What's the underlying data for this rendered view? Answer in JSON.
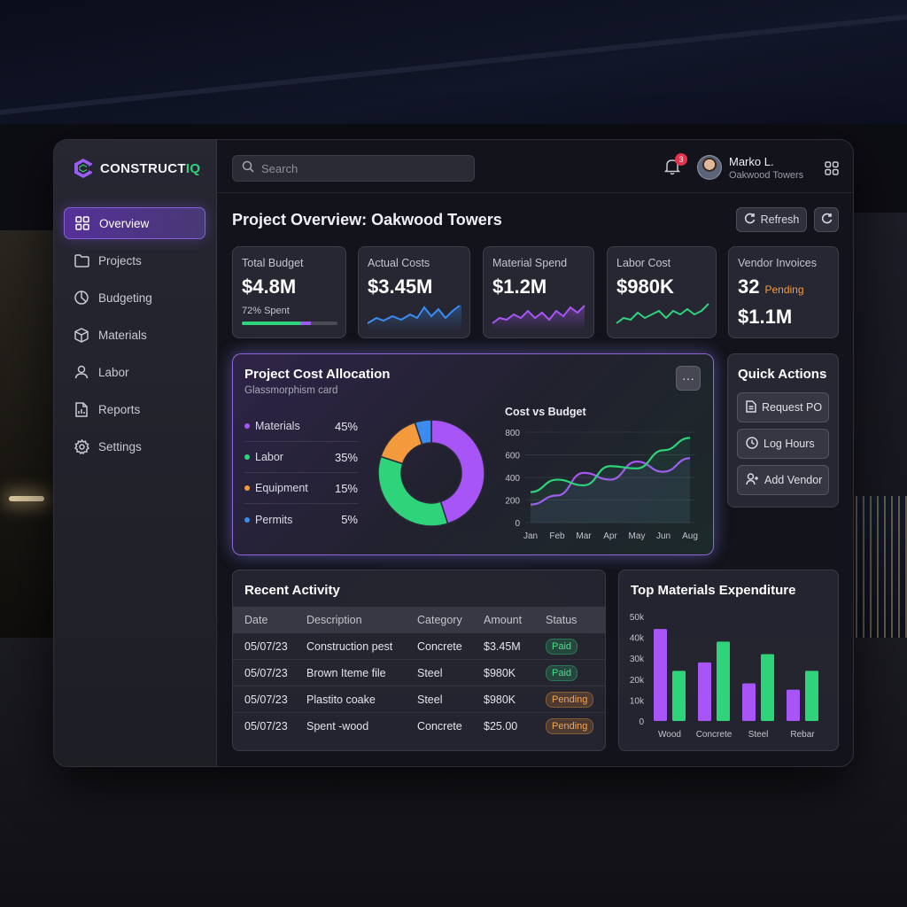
{
  "brand": {
    "name_prefix": "CONSTRUCT",
    "name_accent": "IQ"
  },
  "sidebar": {
    "items": [
      {
        "label": "Overview",
        "icon": "grid-icon",
        "active": true
      },
      {
        "label": "Projects",
        "icon": "folder-icon"
      },
      {
        "label": "Budgeting",
        "icon": "pie-chart-icon"
      },
      {
        "label": "Materials",
        "icon": "cube-icon"
      },
      {
        "label": "Labor",
        "icon": "user-icon"
      },
      {
        "label": "Reports",
        "icon": "report-icon"
      },
      {
        "label": "Settings",
        "icon": "gear-icon"
      }
    ]
  },
  "topbar": {
    "search_placeholder": "Search",
    "notification_count": "3",
    "user_name": "Marko L.",
    "user_project": "Oakwood Towers"
  },
  "page": {
    "title": "Project Overview: Oakwood Towers",
    "refresh_label": "Refresh"
  },
  "kpis": [
    {
      "label": "Total Budget",
      "value": "$4.8M",
      "sub": "72% Spent",
      "progress": 0.72
    },
    {
      "label": "Actual Costs",
      "value": "$3.45M"
    },
    {
      "label": "Material Spend",
      "value": "$1.2M"
    },
    {
      "label": "Labor Cost",
      "value": "$980K"
    },
    {
      "label": "Vendor Invoices",
      "value": "32",
      "status": "Pending",
      "value2": "$1.1M"
    }
  ],
  "allocation": {
    "title": "Project Cost Allocation",
    "subtitle": "Glassmorphism card",
    "more_label": "···",
    "chart_title": "Cost vs Budget"
  },
  "quick_actions": {
    "title": "Quick Actions",
    "buttons": [
      {
        "label": "Request PO",
        "icon": "document-icon"
      },
      {
        "label": "Log Hours",
        "icon": "clock-icon"
      },
      {
        "label": "Add Vendor",
        "icon": "add-user-icon"
      }
    ]
  },
  "activity": {
    "title": "Recent Activity",
    "columns": [
      "Date",
      "Description",
      "Category",
      "Amount",
      "Status"
    ],
    "rows": [
      {
        "date": "05/07/23",
        "description": "Construction pest",
        "category": "Concrete",
        "amount": "$3.45M",
        "status": "Paid"
      },
      {
        "date": "05/07/23",
        "description": "Brown Iteme file",
        "category": "Steel",
        "amount": "$980K",
        "status": "Paid"
      },
      {
        "date": "05/07/23",
        "description": "Plastito coake",
        "category": "Steel",
        "amount": "$980K",
        "status": "Pending"
      },
      {
        "date": "05/07/23",
        "description": "Spent -wood",
        "category": "Concrete",
        "amount": "$25.00",
        "status": "Pending"
      }
    ]
  },
  "materials_chart_title": "Top Materials Expenditure",
  "colors": {
    "purple": "#a855f7",
    "green": "#2fd37a",
    "orange": "#f39a3d",
    "blue": "#3b8cf0"
  },
  "chart_data": [
    {
      "type": "pie",
      "categories": [
        "Materials",
        "Labor",
        "Equipment",
        "Permits"
      ],
      "values": [
        45,
        35,
        15,
        5
      ],
      "labels": [
        "45%",
        "35%",
        "15%",
        "5%"
      ],
      "colors": [
        "#a855f7",
        "#2fd37a",
        "#f39a3d",
        "#3b8cf0"
      ],
      "donut": true
    },
    {
      "type": "line",
      "title": "Cost vs Budget",
      "categories": [
        "Jan",
        "Feb",
        "Mar",
        "Apr",
        "May",
        "Jun",
        "Aug"
      ],
      "series": [
        {
          "color": "#a855f7",
          "values": [
            160,
            240,
            440,
            380,
            540,
            450,
            570
          ]
        },
        {
          "color": "#2fd37a",
          "values": [
            270,
            380,
            330,
            500,
            480,
            640,
            750
          ]
        }
      ],
      "yticks": [
        0,
        200,
        400,
        600,
        800
      ],
      "ylim": [
        0,
        800
      ]
    },
    {
      "type": "bar",
      "title": "Top Materials Expenditure",
      "categories": [
        "Wood",
        "Concrete",
        "Steel",
        "Rebar"
      ],
      "series": [
        {
          "color": "#a855f7",
          "values": [
            44000,
            28000,
            18000,
            15000
          ]
        },
        {
          "color": "#2fd37a",
          "values": [
            24000,
            38000,
            32000,
            24000
          ]
        }
      ],
      "ytick_labels": [
        "0",
        "10k",
        "20k",
        "30k",
        "40k",
        "50k"
      ],
      "ylim": [
        0,
        50000
      ]
    }
  ]
}
